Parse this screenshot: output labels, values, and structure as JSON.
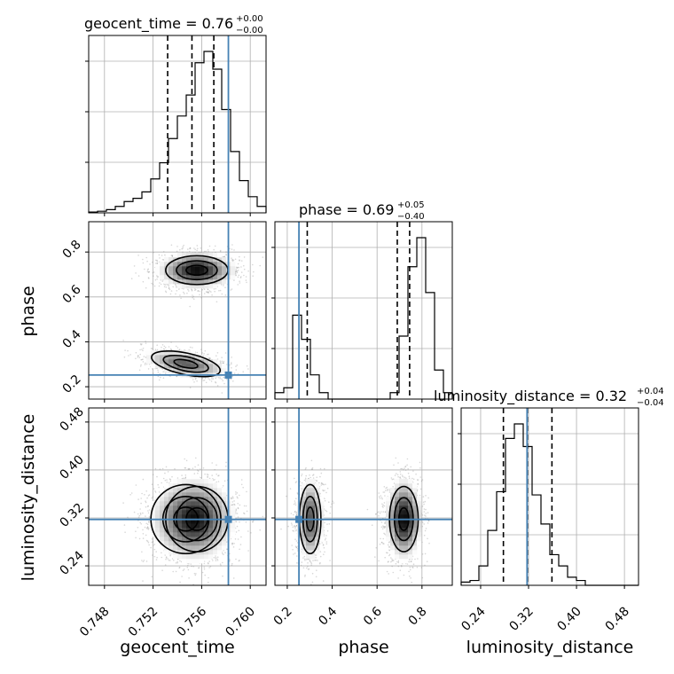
{
  "colors": {
    "truth": "#4682b4",
    "hist": "#000000",
    "grid": "#b0b0b0",
    "scatter": "#8c8c8c"
  },
  "titles": {
    "geocent_time": {
      "name": "geocent_time",
      "value": "0.76",
      "plus": "+0.00",
      "minus": "−0.00"
    },
    "phase": {
      "name": "phase",
      "value": "0.69",
      "plus": "+0.05",
      "minus": "−0.40"
    },
    "luminosity_distance": {
      "name": "luminosity_distance",
      "value": "0.32",
      "plus": "+0.04",
      "minus": "−0.04"
    }
  },
  "axis_labels": {
    "x0": "geocent_time",
    "x1": "phase",
    "x2": "luminosity_distance",
    "y1": "phase",
    "y2": "luminosity_distance"
  },
  "chart_data": {
    "type": "corner",
    "parameters": [
      "geocent_time",
      "phase",
      "luminosity_distance"
    ],
    "ranges": {
      "geocent_time": [
        0.7467,
        0.7613
      ],
      "phase": [
        0.145,
        0.935
      ],
      "luminosity_distance": [
        0.2075,
        0.5035
      ]
    },
    "ticks": {
      "geocent_time": {
        "values": [
          0.748,
          0.752,
          0.756,
          0.76
        ],
        "labels": [
          "0.748",
          "0.752",
          "0.756",
          "0.760"
        ]
      },
      "phase": {
        "values": [
          0.2,
          0.4,
          0.6,
          0.8
        ],
        "labels": [
          "0.2",
          "0.4",
          "0.6",
          "0.8"
        ]
      },
      "luminosity_distance": {
        "values": [
          0.24,
          0.32,
          0.4,
          0.48
        ],
        "labels": [
          "0.24",
          "0.32",
          "0.40",
          "0.48"
        ]
      }
    },
    "truths": {
      "geocent_time": 0.7582,
      "phase": 0.252,
      "luminosity_distance": 0.3175
    },
    "quantiles": {
      "geocent_time": [
        0.7532,
        0.7552,
        0.757
      ],
      "phase": [
        0.289,
        0.69,
        0.745
      ],
      "luminosity_distance": [
        0.278,
        0.318,
        0.359
      ]
    },
    "hist_1d": {
      "geocent_time": {
        "edges_start": 0.7467,
        "bin_width": 0.00073,
        "counts": [
          0.005,
          0.01,
          0.02,
          0.04,
          0.07,
          0.09,
          0.13,
          0.21,
          0.31,
          0.46,
          0.6,
          0.73,
          0.93,
          1.0,
          0.89,
          0.64,
          0.38,
          0.2,
          0.1,
          0.04
        ]
      },
      "phase": {
        "edges_start": 0.145,
        "bin_width": 0.0395,
        "counts": [
          0.04,
          0.07,
          0.52,
          0.37,
          0.15,
          0.04,
          0.0,
          0.0,
          0.0,
          0.0,
          0.0,
          0.0,
          0.0,
          0.04,
          0.39,
          0.82,
          1.0,
          0.66,
          0.18,
          0.04
        ]
      },
      "luminosity_distance": {
        "edges_start": 0.2075,
        "bin_width": 0.0148,
        "counts": [
          0.02,
          0.03,
          0.12,
          0.34,
          0.58,
          0.91,
          1.0,
          0.86,
          0.56,
          0.38,
          0.19,
          0.12,
          0.05,
          0.03,
          0.0,
          0.0,
          0.0,
          0.0,
          0.0,
          0.0
        ]
      }
    },
    "posterior_modes": [
      {
        "weight": 0.42,
        "geocent_time": [
          0.7556,
          0.0016
        ],
        "phase": [
          0.719,
          0.04
        ],
        "luminosity_distance": [
          0.318,
          0.034
        ]
      },
      {
        "weight": 0.25,
        "geocent_time": [
          0.7547,
          0.0018
        ],
        "phase": [
          0.302,
          0.03
        ],
        "luminosity_distance": [
          0.318,
          0.036
        ]
      }
    ],
    "grid": true
  }
}
